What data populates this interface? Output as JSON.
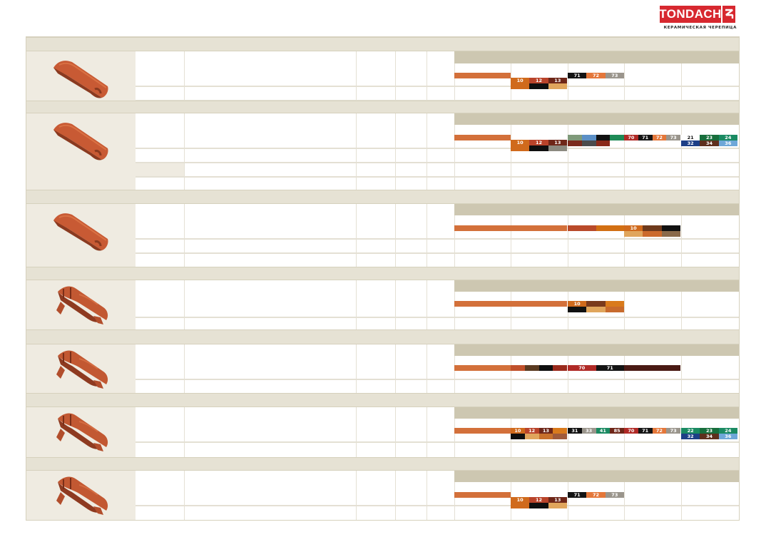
{
  "brand": {
    "name": "TONDACH",
    "subtitle": "КЕРАМИЧЕСКАЯ ЧЕРЕПИЦА",
    "color": "#d7282f"
  },
  "table_colors": {
    "band": "#e6e2d4",
    "image_cell": "#efebe1",
    "color_header": "#cdc7b1",
    "rule": "#e4e0d4"
  },
  "sections": [
    {
      "tile_icon": "half-round-ridge-tile",
      "swatch_rows": [
        [
          {
            "bg": "#d3703a"
          }
        ],
        [
          {
            "label": "10",
            "bg": "#d06a1c"
          },
          {
            "label": "12",
            "bg": "#b9432a"
          },
          {
            "label": "13",
            "bg": "#6e2618"
          },
          {
            "bg": "#d06a1c"
          },
          {
            "bg": "#0f0f0f"
          },
          {
            "bg": "#e0a55c"
          }
        ],
        [
          {
            "label": "71",
            "bg": "#141414"
          },
          {
            "label": "72",
            "bg": "#e4773a"
          },
          {
            "label": "73",
            "bg": "#9a958c"
          }
        ]
      ]
    },
    {
      "tile_icon": "half-round-ridge-tile",
      "swatch_rows": [
        [
          {
            "bg": "#d3703a"
          }
        ],
        [
          {
            "label": "10",
            "bg": "#d06a1c"
          },
          {
            "label": "12",
            "bg": "#b9432a"
          },
          {
            "label": "13",
            "bg": "#6e2618"
          },
          {
            "bg": "#d06a1c"
          },
          {
            "bg": "#0f0f0f"
          },
          {
            "bg": "#8c8a80"
          }
        ],
        [
          {
            "bg": "#7f9a7a"
          },
          {
            "bg": "#5b8fc6"
          },
          {
            "bg": "#111111"
          },
          {
            "bg": "#1e8a56"
          },
          {
            "bg": "#7a2a1c"
          },
          {
            "bg": "#4c4c4c"
          },
          {
            "bg": "#8a2a1a"
          }
        ],
        [
          {
            "label": "70",
            "bg": "#b02a26"
          },
          {
            "label": "71",
            "bg": "#141414"
          },
          {
            "label": "72",
            "bg": "#e4773a"
          },
          {
            "label": "73",
            "bg": "#9a958c"
          }
        ],
        [
          {
            "label": "21",
            "bg": "#ffffff"
          },
          {
            "label": "23",
            "bg": "#176e3c"
          },
          {
            "label": "24",
            "bg": "#1a8a62"
          },
          {
            "label": "32",
            "bg": "#1d3f86"
          },
          {
            "label": "34",
            "bg": "#5e2f1c"
          },
          {
            "label": "36",
            "bg": "#6ea7d8"
          }
        ]
      ]
    },
    {
      "tile_icon": "half-round-ridge-tile",
      "swatch_rows": [
        [
          {
            "bg": "#d3703a"
          }
        ],
        [
          {
            "bg": "#d3703a"
          }
        ],
        [
          {
            "bg": "#b94a2a"
          },
          {
            "bg": "#d26f13"
          }
        ],
        [
          {
            "label": "10",
            "bg": "#d06a1c"
          },
          {
            "bg": "#6e3a1c"
          },
          {
            "bg": "#111111"
          },
          {
            "bg": "#e0a55c"
          },
          {
            "bg": "#cc6a2c"
          },
          {
            "bg": "#8a6a4a"
          }
        ]
      ]
    },
    {
      "tile_icon": "ribbed-ridge-tile",
      "swatch_rows": [
        [
          {
            "bg": "#d3703a"
          }
        ],
        [
          {
            "bg": "#d3703a"
          }
        ],
        [
          {
            "label": "10",
            "bg": "#d06a1c"
          },
          {
            "bg": "#7a3a1c"
          },
          {
            "bg": "#d97a1c"
          },
          {
            "bg": "#111111"
          },
          {
            "bg": "#e0a55c"
          },
          {
            "bg": "#c86a2c"
          }
        ]
      ]
    },
    {
      "tile_icon": "ribbed-ridge-tile",
      "swatch_rows": [
        [
          {
            "bg": "#d3703a"
          }
        ],
        [
          {
            "bg": "#c0502a"
          },
          {
            "bg": "#5a3a20"
          },
          {
            "bg": "#0f0f0f"
          },
          {
            "bg": "#9a2a1c"
          }
        ],
        [
          {
            "label": "70",
            "bg": "#b02a26"
          },
          {
            "label": "71",
            "bg": "#141414"
          }
        ],
        [
          {
            "bg": "#4a1a14"
          }
        ]
      ]
    },
    {
      "tile_icon": "ribbed-ridge-tile",
      "swatch_rows": [
        [
          {
            "bg": "#d3703a"
          }
        ],
        [
          {
            "label": "10",
            "bg": "#d06a1c"
          },
          {
            "label": "12",
            "bg": "#b9432a"
          },
          {
            "label": "13",
            "bg": "#6e2618"
          },
          {
            "bg": "#d97a1c"
          },
          {
            "bg": "#0f0f0f"
          },
          {
            "bg": "#e0a55c"
          },
          {
            "bg": "#c8702c"
          },
          {
            "bg": "#a05a3a"
          }
        ],
        [
          {
            "label": "31",
            "bg": "#111111"
          },
          {
            "label": "33",
            "bg": "#9a958c"
          },
          {
            "label": "41",
            "bg": "#1a8a62"
          },
          {
            "label": "85",
            "bg": "#6e2618"
          }
        ],
        [
          {
            "label": "70",
            "bg": "#b02a26"
          },
          {
            "label": "71",
            "bg": "#141414"
          },
          {
            "label": "72",
            "bg": "#e4773a"
          },
          {
            "label": "73",
            "bg": "#9a958c"
          }
        ],
        [
          {
            "label": "22",
            "bg": "#1a8a62"
          },
          {
            "label": "23",
            "bg": "#176e3c"
          },
          {
            "label": "24",
            "bg": "#1a8a62"
          },
          {
            "label": "32",
            "bg": "#1d3f86"
          },
          {
            "label": "34",
            "bg": "#5e2f1c"
          },
          {
            "label": "36",
            "bg": "#6ea7d8"
          }
        ]
      ]
    },
    {
      "tile_icon": "ribbed-ridge-tile",
      "swatch_rows": [
        [
          {
            "bg": "#d3703a"
          }
        ],
        [
          {
            "label": "10",
            "bg": "#d06a1c"
          },
          {
            "label": "12",
            "bg": "#b9432a"
          },
          {
            "label": "13",
            "bg": "#6e2618"
          },
          {
            "bg": "#d06a1c"
          },
          {
            "bg": "#0f0f0f"
          },
          {
            "bg": "#e0a55c"
          }
        ],
        [
          {
            "label": "71",
            "bg": "#141414"
          },
          {
            "label": "72",
            "bg": "#e4773a"
          },
          {
            "label": "73",
            "bg": "#9a958c"
          }
        ]
      ]
    }
  ]
}
